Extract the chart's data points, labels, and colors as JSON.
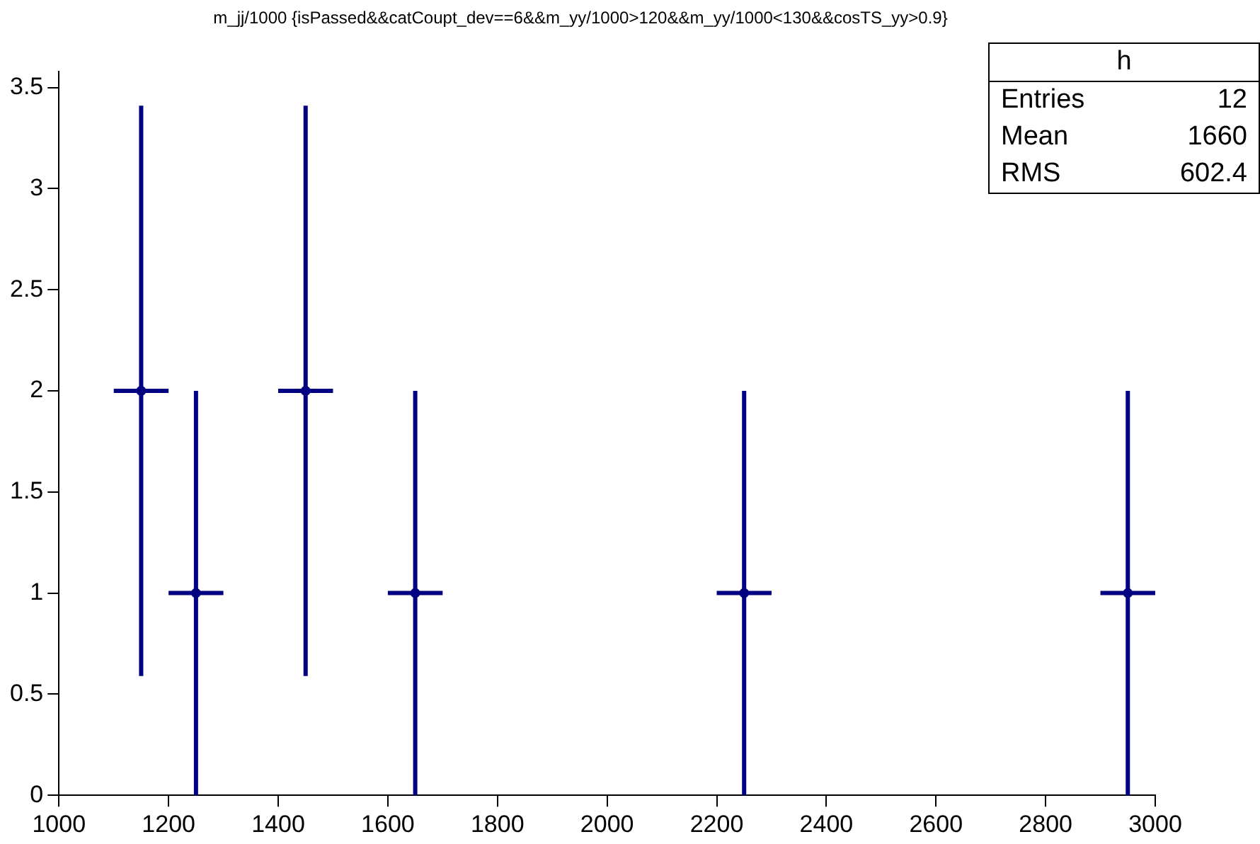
{
  "chart_data": {
    "type": "scatter",
    "title": "m_jj/1000 {isPassed&&catCoupt_dev==6&&m_yy/1000>120&&m_yy/1000<130&&cosTS_yy>0.9}",
    "x": [
      1150,
      1250,
      1450,
      1650,
      2250,
      2950
    ],
    "series": [
      {
        "color": "#000080",
        "values": [
          2,
          1,
          2,
          1,
          1,
          1
        ],
        "errors": [
          1.41,
          1,
          1.41,
          1,
          1,
          1
        ],
        "xerrors": [
          50,
          50,
          50,
          50,
          50,
          50
        ]
      }
    ],
    "xlim": [
      1000,
      3000
    ],
    "xticks": [
      1000,
      1200,
      1400,
      1600,
      1800,
      2000,
      2200,
      2400,
      2600,
      2800,
      3000
    ],
    "ylim": [
      0,
      3.58
    ],
    "yticks": [
      0,
      0.5,
      1,
      1.5,
      2,
      2.5,
      3,
      3.5
    ],
    "marker": "circle",
    "grid": false,
    "legend": false,
    "annotations": [
      "h",
      "Entries",
      "12",
      "Mean",
      "1660",
      "RMS",
      "602.4"
    ]
  }
}
